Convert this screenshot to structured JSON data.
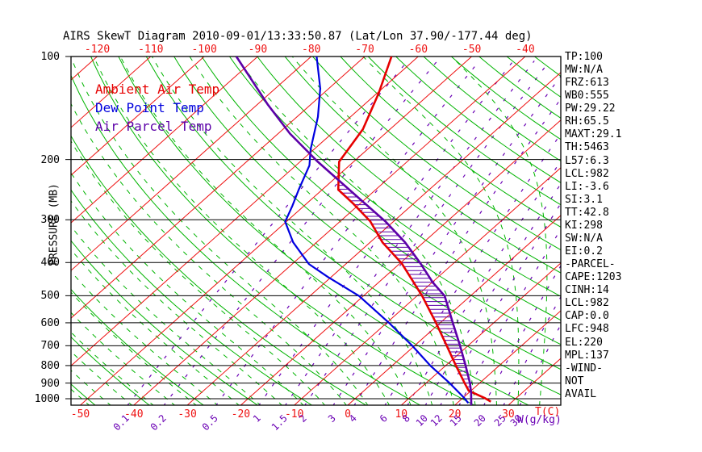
{
  "title": "AIRS SkewT Diagram 2010-09-01/13:33:50.87 (Lat/Lon 37.90/-177.44 deg)",
  "legend": [
    {
      "label": "Ambient Air Temp",
      "color": "#e60000"
    },
    {
      "label": "Dew Point Temp",
      "color": "#0000dd"
    },
    {
      "label": "Air Parcel Temp",
      "color": "#5c00a8"
    }
  ],
  "axes": {
    "pressure": {
      "label": "PRESSURE (MB)",
      "ticks": [
        100,
        200,
        300,
        400,
        500,
        600,
        700,
        800,
        900,
        1000
      ],
      "range": [
        100,
        1050
      ],
      "scale": "log"
    },
    "temperature": {
      "unit_label": "T(C)",
      "bottom_ticks": [
        -50,
        -40,
        -30,
        -20,
        -10,
        0,
        10,
        20,
        30
      ],
      "top_ticks": [
        -120,
        -110,
        -100,
        -90,
        -80,
        -70,
        -60,
        -50,
        -40
      ],
      "step_c": 10
    },
    "mixing_ratio": {
      "unit_label": "W(g/kg)",
      "ticks": [
        0.1,
        0.2,
        0.5,
        1,
        1.5,
        2,
        3,
        4,
        6,
        8,
        10,
        12,
        15,
        20,
        25,
        30
      ]
    }
  },
  "stats": [
    "TP:100",
    "MW:N/A",
    "FRZ:613",
    "WB0:555",
    "PW:29.22",
    "RH:65.5",
    "MAXT:29.1",
    "TH:5463",
    "L57:6.3",
    "LCL:982",
    "LI:-3.6",
    "SI:3.1",
    "TT:42.8",
    "KI:298",
    "SW:N/A",
    "EI:0.2",
    "-PARCEL-",
    "CAPE:1203",
    "CINH:14",
    "LCL:982",
    "CAP:0.0",
    "LFC:948",
    "EL:220",
    "MPL:137",
    "-WIND-",
    "NOT",
    "AVAIL"
  ],
  "colors": {
    "isotherm": "#ee1111",
    "adiabat": "#00b400",
    "mixing": "#6a00b4",
    "pressure_line": "#000000",
    "border": "#000000",
    "ambient": "#e60000",
    "dewpoint": "#0000e0",
    "parcel": "#5c00a8",
    "hatch": "#5c00a8"
  },
  "chart_data": {
    "type": "line",
    "subtype": "skewt-log-p",
    "title": "AIRS SkewT Diagram 2010-09-01/13:33:50.87 (Lat/Lon 37.90/-177.44 deg)",
    "xlabel": "T(C)",
    "ylabel": "PRESSURE (MB)",
    "pressure_range_mb": [
      100,
      1050
    ],
    "isotherm_step_c": 10,
    "dry_adiabat_step_c": 10,
    "moist_adiabat_step_c": 4,
    "mixing_ratio_lines_g_per_kg": [
      0.1,
      0.2,
      0.5,
      1,
      1.5,
      2,
      3,
      4,
      6,
      8,
      10,
      12,
      15,
      20,
      25,
      30
    ],
    "grid": true,
    "legend_position": "top-left-inside",
    "cape_hatch_between": [
      "Ambient Air Temp",
      "Air Parcel Temp"
    ],
    "series": [
      {
        "name": "Ambient Air Temp",
        "units": {
          "p": "mb",
          "t": "C"
        },
        "points": [
          [
            100,
            -65.0
          ],
          [
            128,
            -59.7
          ],
          [
            163,
            -55.1
          ],
          [
            203,
            -52.7
          ],
          [
            245,
            -47.0
          ],
          [
            269,
            -41.3
          ],
          [
            303,
            -34.4
          ],
          [
            349,
            -27.7
          ],
          [
            402,
            -19.7
          ],
          [
            501,
            -9.0
          ],
          [
            600,
            -0.8
          ],
          [
            698,
            5.9
          ],
          [
            800,
            11.9
          ],
          [
            900,
            17.2
          ],
          [
            948,
            19.6
          ],
          [
            994,
            24.0
          ],
          [
            1020,
            26.0
          ]
        ]
      },
      {
        "name": "Dew Point Temp",
        "units": {
          "p": "mb",
          "t": "C"
        },
        "points": [
          [
            100,
            -79.0
          ],
          [
            124,
            -71.6
          ],
          [
            150,
            -66.1
          ],
          [
            187,
            -60.6
          ],
          [
            208,
            -57.5
          ],
          [
            245,
            -54.4
          ],
          [
            273,
            -52.2
          ],
          [
            304,
            -50.2
          ],
          [
            349,
            -44.4
          ],
          [
            404,
            -36.9
          ],
          [
            441,
            -30.6
          ],
          [
            501,
            -20.8
          ],
          [
            600,
            -9.6
          ],
          [
            698,
            -0.6
          ],
          [
            800,
            7.1
          ],
          [
            900,
            14.4
          ],
          [
            994,
            20.2
          ],
          [
            1030,
            22.1
          ]
        ]
      },
      {
        "name": "Air Parcel Temp",
        "units": {
          "p": "mb",
          "t": "C"
        },
        "points": [
          [
            100,
            -94.0
          ],
          [
            138,
            -78.1
          ],
          [
            168,
            -67.8
          ],
          [
            203,
            -56.7
          ],
          [
            266,
            -39.8
          ],
          [
            304,
            -31.4
          ],
          [
            349,
            -23.5
          ],
          [
            402,
            -16.2
          ],
          [
            457,
            -9.9
          ],
          [
            501,
            -4.8
          ],
          [
            610,
            3.0
          ],
          [
            698,
            8.4
          ],
          [
            800,
            13.7
          ],
          [
            900,
            18.2
          ],
          [
            962,
            20.5
          ],
          [
            1045,
            23.1
          ]
        ]
      }
    ]
  }
}
